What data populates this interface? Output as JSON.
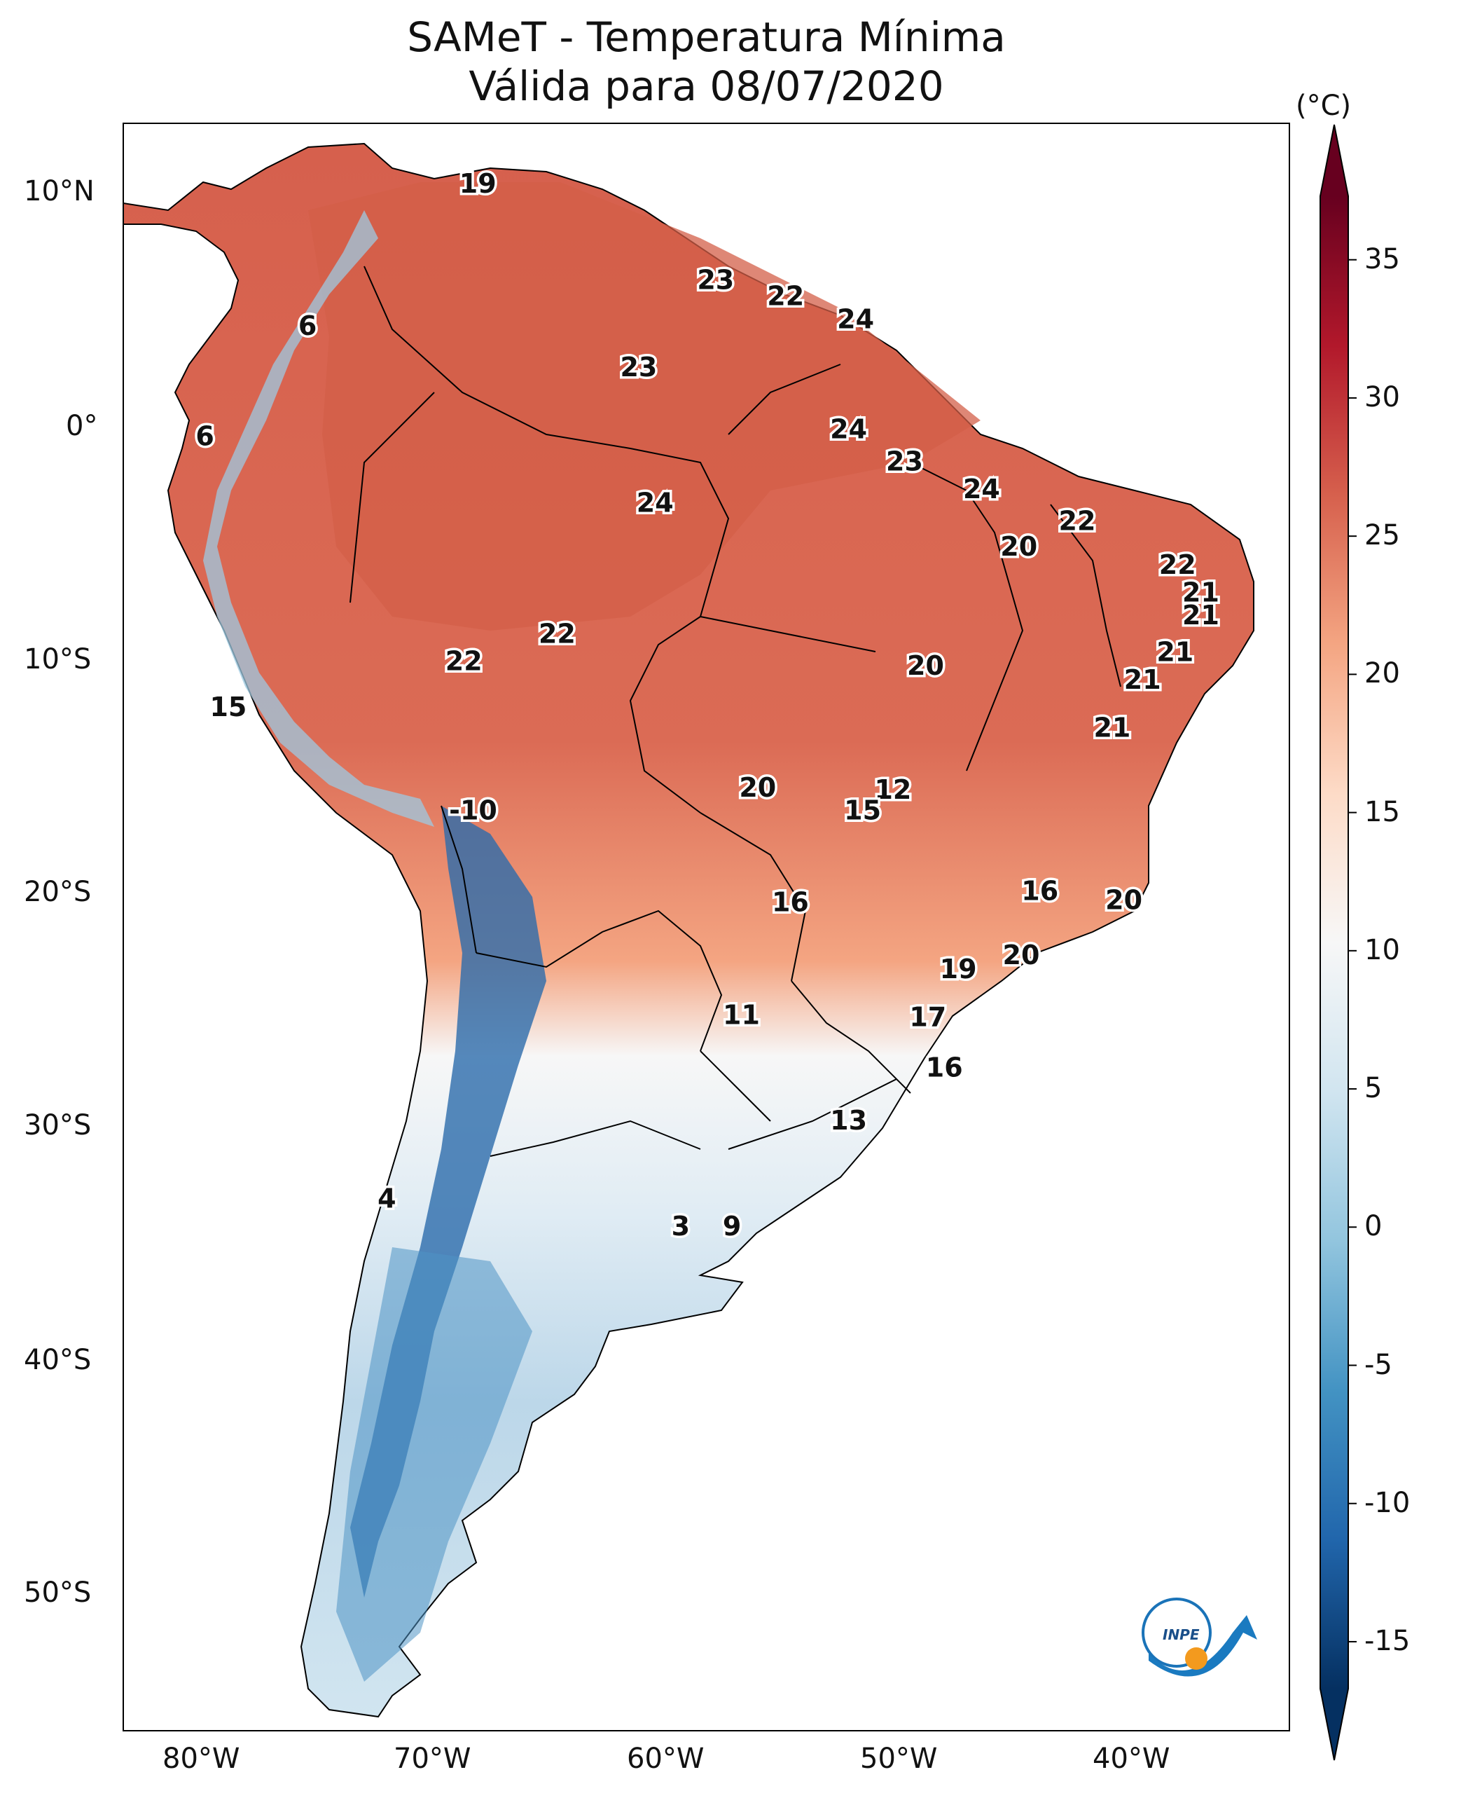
{
  "title": "SAMeT - Temperatura Mínima",
  "subtitle": "Válida para 08/07/2020",
  "lon_ticks": [
    "80°W",
    "70°W",
    "60°W",
    "50°W",
    "40°W"
  ],
  "lat_ticks": [
    "10°N",
    "0°",
    "10°S",
    "20°S",
    "30°S",
    "40°S",
    "50°S"
  ],
  "colorbar": {
    "unit": "(°C)",
    "ticks": [
      "35",
      "30",
      "25",
      "20",
      "15",
      "10",
      "5",
      "0",
      "-5",
      "-10",
      "-15"
    ],
    "range": [
      -17,
      38
    ],
    "colors": [
      "#053061",
      "#2166ac",
      "#4393c3",
      "#92c5de",
      "#d1e5f0",
      "#f7f7f7",
      "#fddbc7",
      "#f4a582",
      "#d6604d",
      "#b2182b",
      "#67001f"
    ]
  },
  "logo_text": "INPE",
  "chart_data": {
    "type": "heatmap",
    "variable": "Temperatura Mínima",
    "units": "°C",
    "lon_range": [
      -82.5,
      -32.5
    ],
    "lat_range": [
      -56.5,
      13.5
    ],
    "annotations": [
      {
        "lon": -67.3,
        "lat": 10.8,
        "value": "19"
      },
      {
        "lon": -74.6,
        "lat": 4.6,
        "value": "6"
      },
      {
        "lon": -79.0,
        "lat": -0.2,
        "value": "6"
      },
      {
        "lon": -57.1,
        "lat": 6.6,
        "value": "23"
      },
      {
        "lon": -54.1,
        "lat": 5.9,
        "value": "22"
      },
      {
        "lon": -51.1,
        "lat": 4.9,
        "value": "24"
      },
      {
        "lon": -60.4,
        "lat": 2.8,
        "value": "23"
      },
      {
        "lon": -51.4,
        "lat": 0.1,
        "value": "24"
      },
      {
        "lon": -49.0,
        "lat": -1.3,
        "value": "23"
      },
      {
        "lon": -45.7,
        "lat": -2.5,
        "value": "24"
      },
      {
        "lon": -41.6,
        "lat": -3.9,
        "value": "22"
      },
      {
        "lon": -59.7,
        "lat": -3.1,
        "value": "24"
      },
      {
        "lon": -44.1,
        "lat": -5.0,
        "value": "20"
      },
      {
        "lon": -37.3,
        "lat": -5.8,
        "value": "22"
      },
      {
        "lon": -36.3,
        "lat": -7.0,
        "value": "21"
      },
      {
        "lon": -36.3,
        "lat": -8.0,
        "value": "21"
      },
      {
        "lon": -37.4,
        "lat": -9.6,
        "value": "21"
      },
      {
        "lon": -38.8,
        "lat": -10.8,
        "value": "21"
      },
      {
        "lon": -40.1,
        "lat": -12.9,
        "value": "21"
      },
      {
        "lon": -63.9,
        "lat": -8.8,
        "value": "22"
      },
      {
        "lon": -67.9,
        "lat": -10.0,
        "value": "22"
      },
      {
        "lon": -48.1,
        "lat": -10.2,
        "value": "20"
      },
      {
        "lon": -78.0,
        "lat": -12.0,
        "value": "15"
      },
      {
        "lon": -55.3,
        "lat": -15.5,
        "value": "20"
      },
      {
        "lon": -49.5,
        "lat": -15.6,
        "value": "12"
      },
      {
        "lon": -50.8,
        "lat": -16.5,
        "value": "15"
      },
      {
        "lon": -67.5,
        "lat": -16.5,
        "value": "-10"
      },
      {
        "lon": -53.9,
        "lat": -20.5,
        "value": "16"
      },
      {
        "lon": -43.2,
        "lat": -20.0,
        "value": "16"
      },
      {
        "lon": -39.6,
        "lat": -20.4,
        "value": "20"
      },
      {
        "lon": -44.0,
        "lat": -22.8,
        "value": "20"
      },
      {
        "lon": -46.7,
        "lat": -23.4,
        "value": "19"
      },
      {
        "lon": -56.0,
        "lat": -25.4,
        "value": "11"
      },
      {
        "lon": -48.0,
        "lat": -25.5,
        "value": "17"
      },
      {
        "lon": -47.3,
        "lat": -27.7,
        "value": "16"
      },
      {
        "lon": -51.4,
        "lat": -30.0,
        "value": "13"
      },
      {
        "lon": -71.2,
        "lat": -33.4,
        "value": "4"
      },
      {
        "lon": -58.6,
        "lat": -34.6,
        "value": "3"
      },
      {
        "lon": -56.4,
        "lat": -34.6,
        "value": "9"
      }
    ]
  }
}
